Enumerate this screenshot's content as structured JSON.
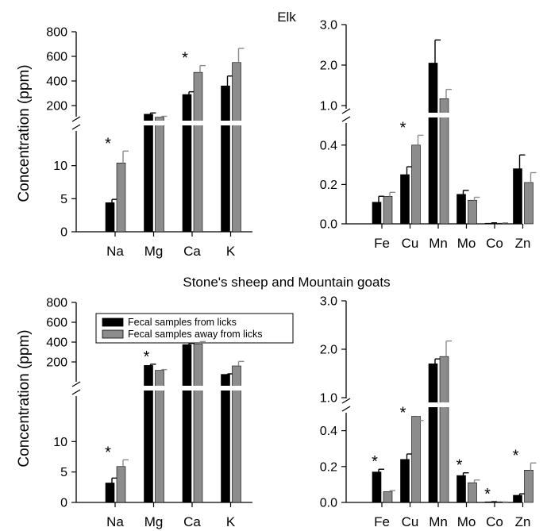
{
  "figure": {
    "panel_titles": [
      "Elk",
      "Stone's sheep and Mountain goats"
    ],
    "ylabel": "Concentration (ppm)",
    "legend": [
      "Fecal samples from licks",
      "Fecal samples away from licks"
    ],
    "colors": {
      "from_licks": "#000000",
      "away_from_licks": "#8c8c8c"
    }
  },
  "chart_data": [
    {
      "type": "bar",
      "title": "Elk",
      "ylabel": "Concentration (ppm)",
      "categories": [
        "Na",
        "Mg",
        "Ca",
        "K"
      ],
      "axis_break": true,
      "lower_ylim": [
        0,
        15
      ],
      "lower_yticks": [
        "0",
        "5",
        "10"
      ],
      "upper_ylim": [
        0,
        800
      ],
      "upper_yticks": [
        "200",
        "400",
        "600",
        "800"
      ],
      "series": [
        {
          "name": "Fecal samples from licks",
          "values": [
            4.4,
            130,
            290,
            360
          ],
          "errors": [
            0.5,
            10,
            22,
            80
          ]
        },
        {
          "name": "Fecal samples away from licks",
          "values": [
            10.4,
            105,
            470,
            550
          ],
          "errors": [
            1.8,
            8,
            55,
            115
          ]
        }
      ],
      "significant": [
        "Na",
        "Ca"
      ],
      "significance_marker": "*"
    },
    {
      "type": "bar",
      "title": "",
      "categories": [
        "Fe",
        "Cu",
        "Mn",
        "Mo",
        "Co",
        "Zn"
      ],
      "axis_break": true,
      "lower_ylim": [
        0,
        0.5
      ],
      "lower_yticks": [
        "0.0",
        "0.2",
        "0.4"
      ],
      "upper_ylim": [
        0.5,
        3.0
      ],
      "upper_yticks": [
        "1.0",
        "2.0",
        "3.0"
      ],
      "series": [
        {
          "name": "Fecal samples from licks",
          "values": [
            0.11,
            0.25,
            2.05,
            0.15,
            0.003,
            0.28
          ],
          "errors": [
            0.03,
            0.04,
            0.57,
            0.02,
            0.002,
            0.07
          ]
        },
        {
          "name": "Fecal samples away from licks",
          "values": [
            0.14,
            0.4,
            1.17,
            0.12,
            0.003,
            0.21
          ],
          "errors": [
            0.02,
            0.05,
            0.23,
            0.015,
            0.002,
            0.05
          ]
        }
      ],
      "significant": [
        "Cu"
      ],
      "significance_marker": "*"
    },
    {
      "type": "bar",
      "title": "Stone's sheep and Mountain goats",
      "ylabel": "Concentration (ppm)",
      "categories": [
        "Na",
        "Mg",
        "Ca",
        "K"
      ],
      "axis_break": true,
      "lower_ylim": [
        0,
        15
      ],
      "lower_yticks": [
        "0",
        "5",
        "10"
      ],
      "upper_ylim": [
        0,
        800
      ],
      "upper_yticks": [
        "200",
        "400",
        "600",
        "800"
      ],
      "series": [
        {
          "name": "Fecal samples from licks",
          "values": [
            3.2,
            165,
            375,
            75
          ],
          "errors": [
            0.8,
            12,
            12,
            5
          ]
        },
        {
          "name": "Fecal samples away from licks",
          "values": [
            5.9,
            115,
            380,
            160
          ],
          "errors": [
            1.1,
            8,
            25,
            45
          ]
        }
      ],
      "significant": [
        "Na",
        "Mg"
      ],
      "significance_marker": "*",
      "legend_position": "top-left"
    },
    {
      "type": "bar",
      "title": "",
      "categories": [
        "Fe",
        "Cu",
        "Mn",
        "Mo",
        "Co",
        "Zn"
      ],
      "axis_break": true,
      "lower_ylim": [
        0,
        0.5
      ],
      "lower_yticks": [
        "0.0",
        "0.2",
        "0.4"
      ],
      "upper_ylim": [
        0.5,
        3.0
      ],
      "upper_yticks": [
        "1.0",
        "2.0",
        "3.0"
      ],
      "series": [
        {
          "name": "Fecal samples from licks",
          "values": [
            0.17,
            0.24,
            1.7,
            0.15,
            0.003,
            0.04
          ],
          "errors": [
            0.015,
            0.03,
            0.1,
            0.015,
            0.001,
            0.008
          ]
        },
        {
          "name": "Fecal samples away from licks",
          "values": [
            0.06,
            0.48,
            1.85,
            0.11,
            0.002,
            0.18
          ],
          "errors": [
            0.006,
            0.05,
            0.32,
            0.015,
            0.001,
            0.04
          ]
        }
      ],
      "significant": [
        "Fe",
        "Cu",
        "Mo",
        "Co",
        "Zn"
      ],
      "significance_marker": "*"
    }
  ]
}
